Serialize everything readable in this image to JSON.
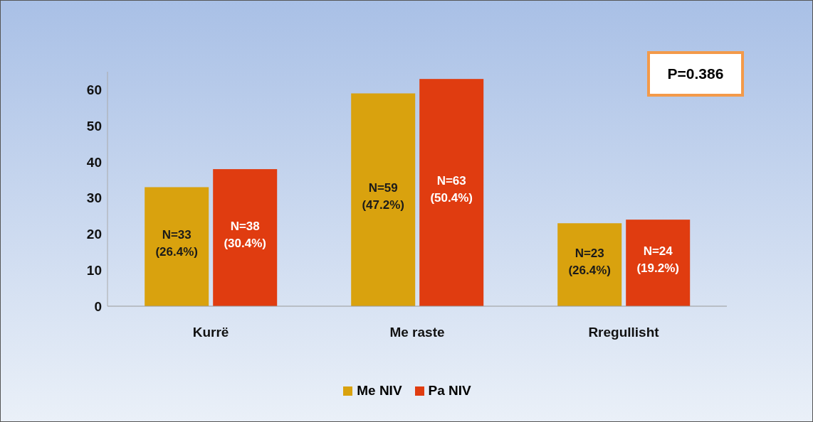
{
  "chart_data": {
    "type": "bar",
    "categories": [
      "Kurrë",
      "Me raste",
      "Rregullisht"
    ],
    "series": [
      {
        "name": "Me NIV",
        "color": "#d9a20e",
        "values": [
          33,
          59,
          23
        ],
        "value_labels": [
          "N=33 (26.4%)",
          "N=59 (47.2%)",
          "N=23 (26.4%)"
        ]
      },
      {
        "name": "Pa NIV",
        "color": "#e03c10",
        "values": [
          38,
          63,
          24
        ],
        "value_labels": [
          "N=38 (30.4%)",
          "N=63 (50.4%)",
          "N=24 (19.2%)"
        ]
      }
    ],
    "ylim": [
      0,
      65
    ],
    "yticks": [
      0,
      10,
      20,
      30,
      40,
      50,
      60
    ],
    "grid": false,
    "legend": "bottom",
    "annotations": [
      "P=0.386"
    ]
  }
}
